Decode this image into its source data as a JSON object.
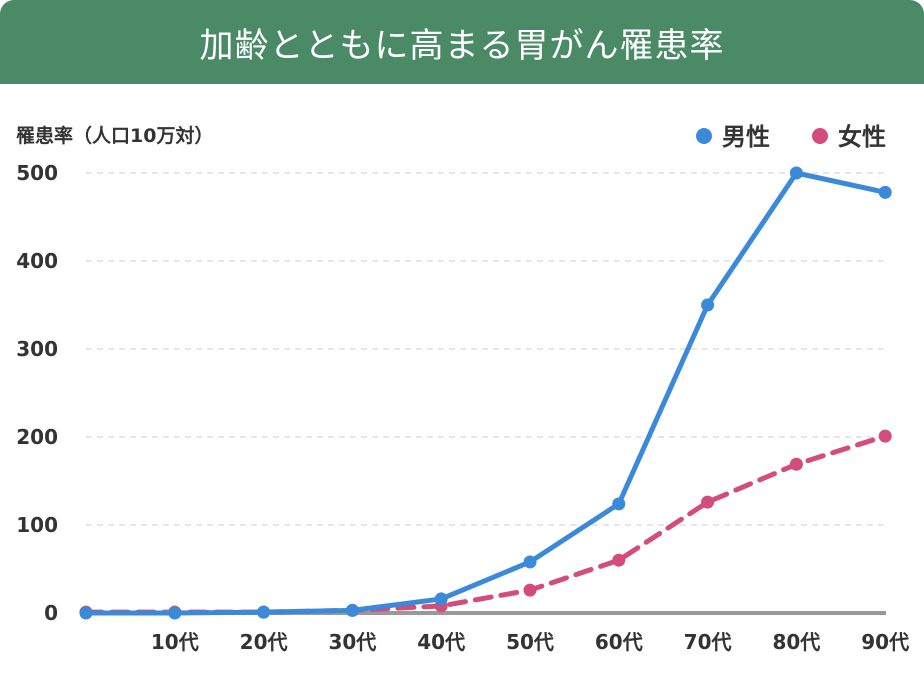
{
  "header": {
    "title": "加齢とともに高まる胃がん罹患率"
  },
  "chart_data": {
    "type": "line",
    "title": "加齢とともに高まる胃がん罹患率",
    "ylabel": "罹患率（人口10万対）",
    "xlabel": "",
    "categories": [
      "",
      "10代",
      "20代",
      "30代",
      "40代",
      "50代",
      "60代",
      "70代",
      "80代",
      "90代"
    ],
    "ylim": [
      0,
      500
    ],
    "yticks": [
      0,
      100,
      200,
      300,
      400,
      500
    ],
    "grid": true,
    "legend_position": "top-right",
    "series": [
      {
        "name": "男性",
        "color": "#3b8ad9",
        "dash": false,
        "values": [
          0,
          0,
          1,
          3,
          16,
          58,
          124,
          350,
          500,
          478
        ]
      },
      {
        "name": "女性",
        "color": "#d34c7c",
        "dash": true,
        "values": [
          1,
          1,
          1,
          3,
          8,
          26,
          60,
          126,
          169,
          201
        ]
      }
    ]
  }
}
